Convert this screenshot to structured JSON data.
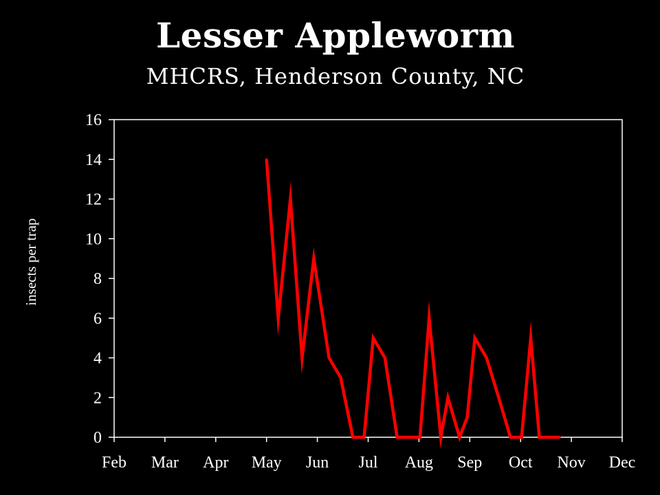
{
  "chart_data": {
    "type": "line",
    "title": "Lesser Appleworm",
    "subtitle": "MHCRS, Henderson County, NC",
    "xlabel": "",
    "ylabel": "insects per trap",
    "ylim": [
      0,
      16
    ],
    "yticks": [
      0,
      2,
      4,
      6,
      8,
      10,
      12,
      14,
      16
    ],
    "xticks": [
      "Feb",
      "Mar",
      "Apr",
      "May",
      "Jun",
      "Jul",
      "Aug",
      "Sep",
      "Oct",
      "Nov",
      "Dec"
    ],
    "grid": false,
    "legend": "none",
    "series": [
      {
        "color": "#ff0000",
        "x": [
          3.0,
          3.23,
          3.47,
          3.7,
          3.93,
          4.23,
          4.46,
          4.7,
          4.92,
          5.1,
          5.33,
          5.57,
          5.8,
          6.02,
          6.2,
          6.43,
          6.57,
          6.8,
          6.95,
          7.1,
          7.33,
          7.57,
          7.8,
          8.02,
          8.2,
          8.37,
          8.58,
          8.77
        ],
        "y": [
          14,
          6,
          12,
          4,
          9,
          4,
          3,
          0,
          0,
          5,
          4,
          0,
          0,
          0,
          6,
          0,
          2,
          0,
          1,
          5,
          4,
          2,
          0,
          0,
          5,
          0,
          0,
          0
        ]
      }
    ]
  }
}
